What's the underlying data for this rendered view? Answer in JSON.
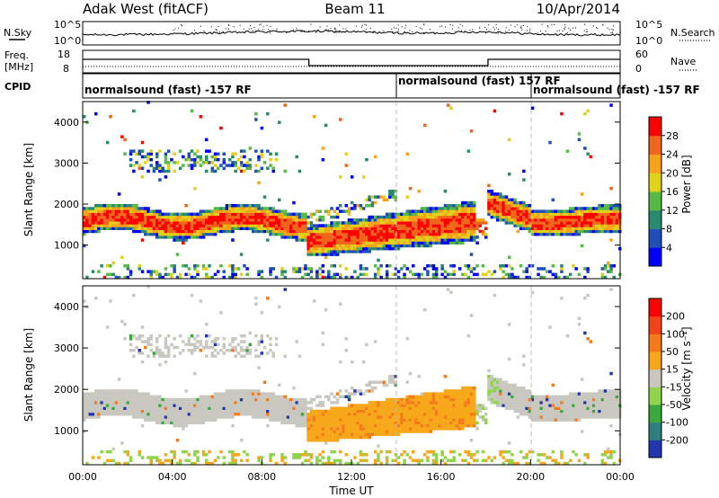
{
  "header": {
    "title": "Adak West (fitACF)",
    "beam": "Beam 11",
    "date": "10/Apr/2014"
  },
  "status_panel": {
    "nsky_label": "N.Sky",
    "nsearch_label": "N.Search",
    "nsky_ticks": [
      "10^5",
      "10^0"
    ],
    "nsky_ticks_right": [
      "10^5",
      "10^0"
    ],
    "freq_label": "Freq.",
    "freq_unit": "[MHz]",
    "freq_ticks": [
      "18",
      "8"
    ],
    "nave_label": "Nave",
    "nave_ticks": [
      "60",
      "0"
    ],
    "cpid_label": "CPID",
    "cpid_segments": [
      {
        "label": "normalsound (fast) -157 RF",
        "start": 0,
        "end": 14
      },
      {
        "label": "normalsound (fast) 157 RF",
        "start": 14,
        "end": 20
      },
      {
        "label": "normalsound (fast) -157 RF",
        "start": 20,
        "end": 24
      }
    ]
  },
  "chart_data": [
    {
      "type": "heatmap",
      "name": "Power",
      "ylabel": "Slant Range [km]",
      "y_ticks": [
        "4000",
        "3000",
        "2000",
        "1000"
      ],
      "ylim": [
        180,
        4500
      ],
      "xlim": [
        0,
        24
      ],
      "colorbar_label": "Power [dB]",
      "colorbar_ticks": [
        "28",
        "24",
        "20",
        "16",
        "12",
        "8",
        "4"
      ],
      "colorbar_colors": [
        "#0000ff",
        "#1f4fb8",
        "#2a8a6e",
        "#55bb44",
        "#e0d21a",
        "#f7a21a",
        "#f0661a",
        "#ff0000"
      ]
    },
    {
      "type": "heatmap",
      "name": "Velocity",
      "ylabel": "Slant Range [km]",
      "y_ticks": [
        "4000",
        "3000",
        "2000",
        "1000"
      ],
      "ylim": [
        180,
        4500
      ],
      "xlim": [
        0,
        24
      ],
      "xlabel": "Time UT",
      "x_ticks": [
        "00:00",
        "04:00",
        "08:00",
        "12:00",
        "16:00",
        "20:00",
        "00:00"
      ],
      "colorbar_label": "Velocity [m s⁻¹]",
      "colorbar_ticks": [
        "200",
        "100",
        "50",
        "15",
        "-15",
        "-50",
        "-100",
        "-200"
      ],
      "colorbar_colors": [
        "#2236b0",
        "#2f7f7f",
        "#3aa83a",
        "#8fd44a",
        "#c8c8c0",
        "#f7a81a",
        "#f47a1a",
        "#f24418",
        "#ff0000"
      ]
    }
  ]
}
